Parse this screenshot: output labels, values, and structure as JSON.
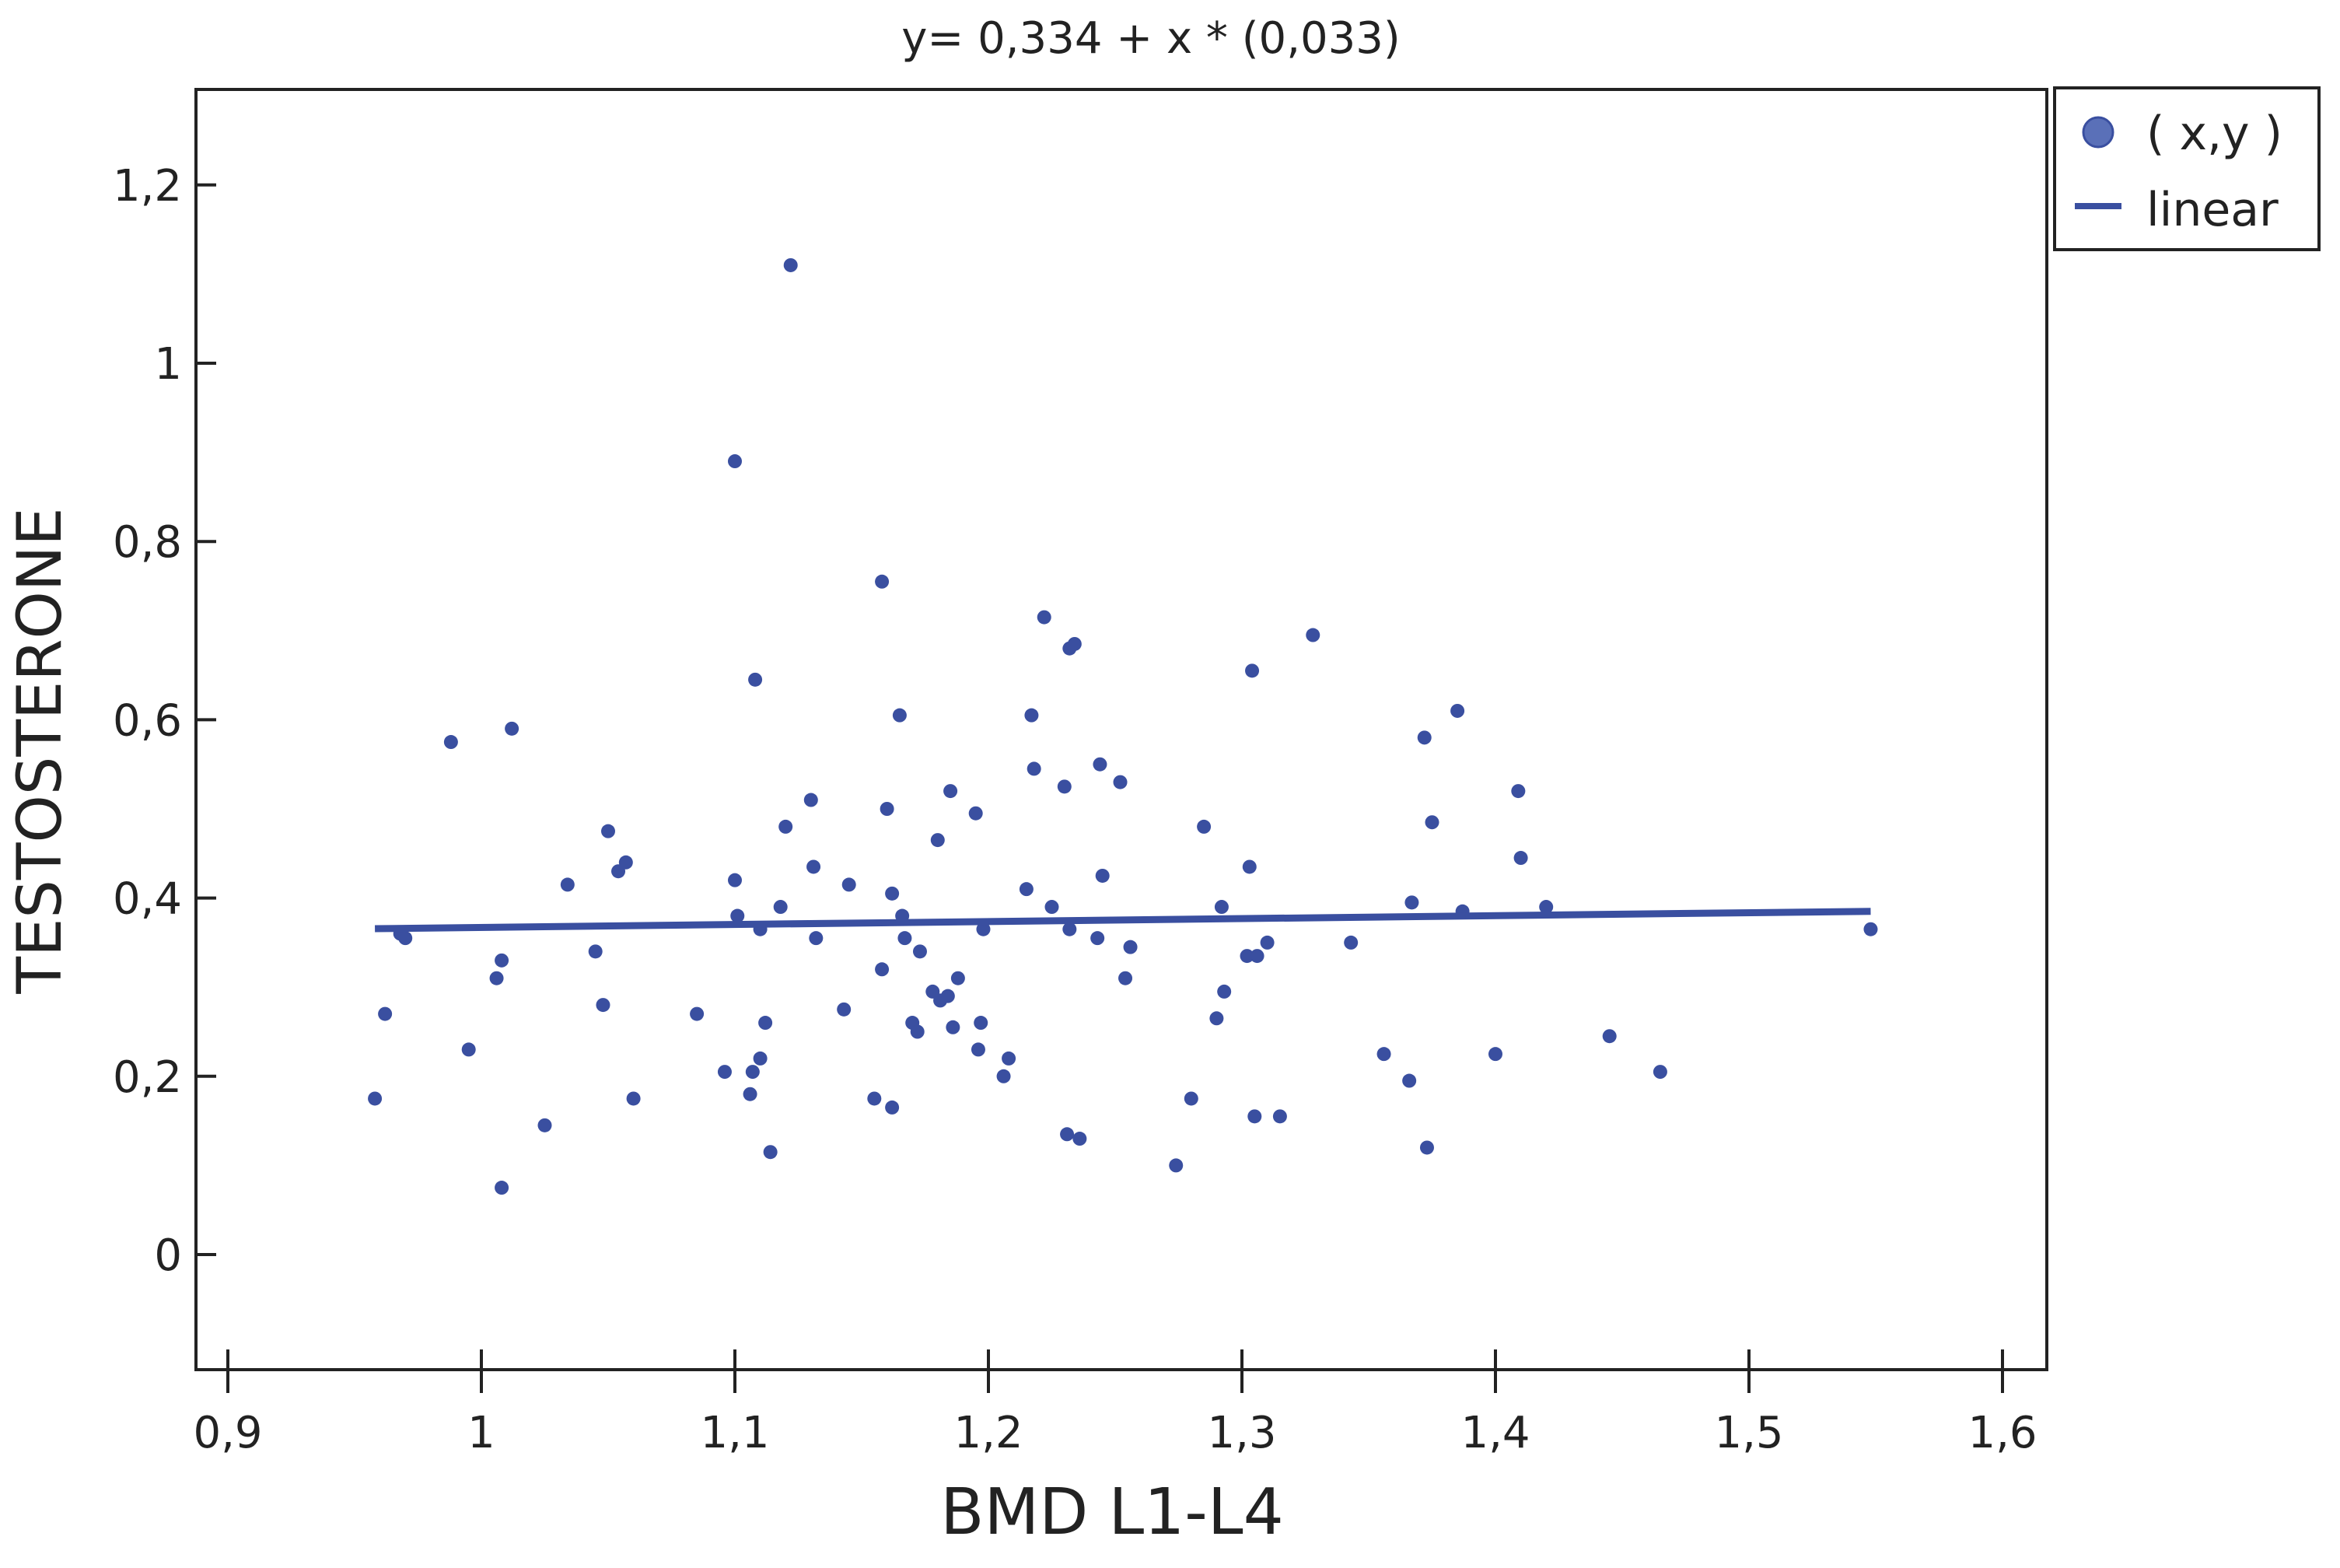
{
  "chart_data": {
    "type": "scatter",
    "title": "y= 0,334 + x * (0,033)",
    "xlabel": "BMD L1-L4",
    "ylabel": "TESTOSTERONE",
    "xlim": [
      0.89,
      1.62
    ],
    "ylim": [
      -0.13,
      1.3
    ],
    "x_ticks": [
      0.9,
      1.0,
      1.1,
      1.2,
      1.3,
      1.4,
      1.5,
      1.6
    ],
    "x_tick_labels": [
      "0,9",
      "1",
      "1,1",
      "1,2",
      "1,3",
      "1,4",
      "1,5",
      "1,6"
    ],
    "y_ticks": [
      0,
      0.2,
      0.4,
      0.6,
      0.8,
      1.0,
      1.2
    ],
    "y_tick_labels": [
      "0",
      "0,2",
      "0,4",
      "0,6",
      "0,8",
      "1",
      "1,2"
    ],
    "grid": false,
    "legend_position": "top-right, outside plot",
    "colors": {
      "series": "#3a4fa0"
    },
    "series": [
      {
        "name": "( x,y )",
        "kind": "points",
        "points": [
          [
            0.958,
            0.175
          ],
          [
            0.962,
            0.27
          ],
          [
            0.968,
            0.36
          ],
          [
            0.97,
            0.355
          ],
          [
            0.988,
            0.575
          ],
          [
            0.995,
            0.23
          ],
          [
            1.006,
            0.31
          ],
          [
            1.008,
            0.33
          ],
          [
            1.008,
            0.075
          ],
          [
            1.012,
            0.59
          ],
          [
            1.025,
            0.145
          ],
          [
            1.034,
            0.415
          ],
          [
            1.045,
            0.34
          ],
          [
            1.048,
            0.28
          ],
          [
            1.05,
            0.475
          ],
          [
            1.054,
            0.43
          ],
          [
            1.057,
            0.44
          ],
          [
            1.06,
            0.175
          ],
          [
            1.085,
            0.27
          ],
          [
            1.096,
            0.205
          ],
          [
            1.1,
            0.89
          ],
          [
            1.1,
            0.42
          ],
          [
            1.101,
            0.38
          ],
          [
            1.106,
            0.18
          ],
          [
            1.107,
            0.205
          ],
          [
            1.108,
            0.645
          ],
          [
            1.11,
            0.365
          ],
          [
            1.11,
            0.22
          ],
          [
            1.112,
            0.26
          ],
          [
            1.114,
            0.115
          ],
          [
            1.118,
            0.39
          ],
          [
            1.12,
            0.48
          ],
          [
            1.122,
            1.11
          ],
          [
            1.13,
            0.51
          ],
          [
            1.131,
            0.435
          ],
          [
            1.132,
            0.355
          ],
          [
            1.143,
            0.275
          ],
          [
            1.145,
            0.415
          ],
          [
            1.155,
            0.175
          ],
          [
            1.158,
            0.755
          ],
          [
            1.158,
            0.32
          ],
          [
            1.16,
            0.5
          ],
          [
            1.162,
            0.405
          ],
          [
            1.162,
            0.165
          ],
          [
            1.165,
            0.605
          ],
          [
            1.166,
            0.38
          ],
          [
            1.167,
            0.355
          ],
          [
            1.17,
            0.26
          ],
          [
            1.172,
            0.25
          ],
          [
            1.173,
            0.34
          ],
          [
            1.178,
            0.295
          ],
          [
            1.18,
            0.465
          ],
          [
            1.181,
            0.285
          ],
          [
            1.184,
            0.29
          ],
          [
            1.185,
            0.52
          ],
          [
            1.186,
            0.255
          ],
          [
            1.188,
            0.31
          ],
          [
            1.195,
            0.495
          ],
          [
            1.196,
            0.23
          ],
          [
            1.197,
            0.26
          ],
          [
            1.198,
            0.365
          ],
          [
            1.206,
            0.2
          ],
          [
            1.208,
            0.22
          ],
          [
            1.215,
            0.41
          ],
          [
            1.217,
            0.605
          ],
          [
            1.218,
            0.545
          ],
          [
            1.222,
            0.715
          ],
          [
            1.225,
            0.39
          ],
          [
            1.23,
            0.525
          ],
          [
            1.231,
            0.135
          ],
          [
            1.232,
            0.68
          ],
          [
            1.232,
            0.365
          ],
          [
            1.234,
            0.685
          ],
          [
            1.236,
            0.13
          ],
          [
            1.243,
            0.355
          ],
          [
            1.244,
            0.55
          ],
          [
            1.245,
            0.425
          ],
          [
            1.252,
            0.53
          ],
          [
            1.254,
            0.31
          ],
          [
            1.256,
            0.345
          ],
          [
            1.274,
            0.1
          ],
          [
            1.28,
            0.175
          ],
          [
            1.285,
            0.48
          ],
          [
            1.29,
            0.265
          ],
          [
            1.292,
            0.39
          ],
          [
            1.293,
            0.295
          ],
          [
            1.302,
            0.335
          ],
          [
            1.303,
            0.435
          ],
          [
            1.304,
            0.655
          ],
          [
            1.305,
            0.155
          ],
          [
            1.306,
            0.335
          ],
          [
            1.31,
            0.35
          ],
          [
            1.315,
            0.155
          ],
          [
            1.328,
            0.695
          ],
          [
            1.343,
            0.35
          ],
          [
            1.356,
            0.225
          ],
          [
            1.366,
            0.195
          ],
          [
            1.367,
            0.395
          ],
          [
            1.372,
            0.58
          ],
          [
            1.373,
            0.12
          ],
          [
            1.375,
            0.485
          ],
          [
            1.385,
            0.61
          ],
          [
            1.387,
            0.385
          ],
          [
            1.4,
            0.225
          ],
          [
            1.409,
            0.52
          ],
          [
            1.41,
            0.445
          ],
          [
            1.42,
            0.39
          ],
          [
            1.445,
            0.245
          ],
          [
            1.465,
            0.205
          ],
          [
            1.548,
            0.365
          ]
        ]
      },
      {
        "name": "linear",
        "kind": "line",
        "intercept": 0.334,
        "slope": 0.033,
        "x_range": [
          0.958,
          1.548
        ]
      }
    ]
  }
}
